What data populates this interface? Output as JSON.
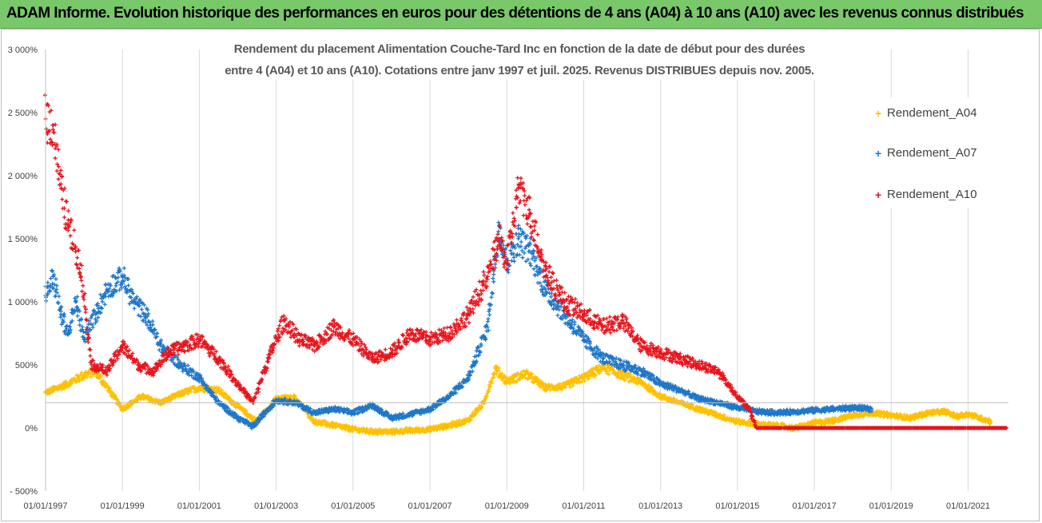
{
  "banner": {
    "title": "ADAM Informe. Evolution historique des performances en euros pour des détentions de 4 ans (A04) à 10 ans (A10) avec les revenus connus distribués"
  },
  "colors": {
    "banner_bg": "#79c96b",
    "A04": "#ffc000",
    "A07": "#1f77c8",
    "A10": "#e8141c",
    "grid": "#d9d9d9"
  },
  "chart_data": {
    "type": "scatter",
    "title_lines": [
      "Rendement du placement Alimentation Couche-Tard Inc en fonction de la date de début pour des durées",
      "entre 4 (A04) et 10 ans (A10). Cotations entre janv 1997 et juil. 2025. Revenus DISTRIBUES depuis nov. 2005."
    ],
    "x_tick_labels": [
      "01/01/1997",
      "01/01/1999",
      "01/01/2001",
      "01/01/2003",
      "01/01/2005",
      "01/01/2007",
      "01/01/2009",
      "01/01/2011",
      "01/01/2013",
      "01/01/2015",
      "01/01/2017",
      "01/01/2019",
      "01/01/2021"
    ],
    "xlim": [
      1997.0,
      2022.05
    ],
    "y_tick_labels": [
      "3 000%",
      "2 500%",
      "2 000%",
      "1 500%",
      "1 000%",
      "500%",
      "0%",
      "- 500%"
    ],
    "y_ticks": [
      3000,
      2500,
      2000,
      1500,
      1000,
      500,
      0,
      -500
    ],
    "ylim": [
      -500,
      3000
    ],
    "reference_line": 200,
    "grid": "vertical",
    "legend_position": "right",
    "marker": "+",
    "series": [
      {
        "name": "Rendement_A04",
        "color": "#ffc000",
        "x": [
          1997.0,
          1997.5,
          1998.0,
          1998.3,
          1998.7,
          1999.0,
          1999.5,
          2000.0,
          2000.5,
          2001.0,
          2001.5,
          2002.0,
          2002.5,
          2003.0,
          2003.5,
          2004.0,
          2004.5,
          2005.0,
          2005.5,
          2006.0,
          2006.5,
          2007.0,
          2007.5,
          2008.0,
          2008.4,
          2008.7,
          2009.0,
          2009.5,
          2010.0,
          2010.5,
          2011.0,
          2011.5,
          2012.0,
          2012.5,
          2013.0,
          2013.5,
          2014.0,
          2014.5,
          2015.0,
          2015.5,
          2016.0,
          2016.5,
          2017.0,
          2017.5,
          2018.0,
          2018.5,
          2019.0,
          2019.5,
          2020.0,
          2020.4,
          2020.7,
          2021.0,
          2021.4,
          2021.6
        ],
        "y": [
          280,
          340,
          420,
          450,
          280,
          150,
          250,
          200,
          270,
          320,
          300,
          170,
          50,
          230,
          240,
          50,
          20,
          -10,
          -30,
          -30,
          -20,
          -10,
          20,
          60,
          200,
          470,
          370,
          430,
          320,
          330,
          400,
          480,
          420,
          360,
          250,
          200,
          150,
          100,
          50,
          30,
          20,
          0,
          40,
          60,
          100,
          120,
          100,
          80,
          120,
          130,
          90,
          110,
          70,
          50
        ]
      },
      {
        "name": "Rendement_A07",
        "color": "#1f77c8",
        "x": [
          1997.0,
          1997.2,
          1997.4,
          1997.6,
          1997.8,
          1998.0,
          1998.3,
          1998.6,
          1999.0,
          1999.3,
          1999.6,
          2000.0,
          2000.5,
          2001.0,
          2001.5,
          2002.0,
          2002.4,
          2002.7,
          2003.0,
          2003.5,
          2004.0,
          2004.5,
          2005.0,
          2005.5,
          2006.0,
          2006.5,
          2007.0,
          2007.5,
          2008.0,
          2008.5,
          2008.8,
          2009.0,
          2009.3,
          2009.6,
          2010.0,
          2010.5,
          2011.0,
          2011.5,
          2012.0,
          2012.5,
          2013.0,
          2013.5,
          2014.0,
          2014.5,
          2015.0,
          2015.5,
          2016.0,
          2016.5,
          2017.0,
          2017.5,
          2018.0,
          2018.5
        ],
        "y": [
          1050,
          1200,
          900,
          750,
          1000,
          700,
          900,
          1100,
          1200,
          1000,
          900,
          650,
          500,
          400,
          200,
          80,
          10,
          120,
          220,
          200,
          120,
          150,
          120,
          180,
          80,
          110,
          150,
          250,
          400,
          800,
          1600,
          1300,
          1500,
          1400,
          1100,
          900,
          700,
          550,
          500,
          450,
          350,
          300,
          230,
          200,
          160,
          130,
          120,
          130,
          140,
          150,
          160,
          150
        ]
      },
      {
        "name": "Rendement_A10",
        "color": "#e8141c",
        "x": [
          1997.0,
          1997.2,
          1997.4,
          1997.6,
          1997.9,
          1998.2,
          1998.6,
          1999.0,
          1999.4,
          1999.8,
          2000.2,
          2000.6,
          2001.0,
          2001.5,
          2002.0,
          2002.4,
          2002.8,
          2003.2,
          2003.6,
          2004.0,
          2004.5,
          2005.0,
          2005.5,
          2006.0,
          2006.5,
          2007.0,
          2007.5,
          2008.0,
          2008.5,
          2008.8,
          2009.0,
          2009.3,
          2009.6,
          2010.0,
          2010.5,
          2011.0,
          2011.5,
          2012.0,
          2012.5,
          2013.0,
          2013.5,
          2014.0,
          2014.5,
          2015.0,
          2015.3,
          2015.5,
          2016.0,
          2017.0,
          2018.0,
          2019.0,
          2020.0,
          2021.0,
          2022.0
        ],
        "y": [
          2450,
          2400,
          1900,
          1600,
          1300,
          500,
          450,
          650,
          500,
          450,
          600,
          650,
          700,
          550,
          350,
          200,
          550,
          850,
          700,
          650,
          800,
          700,
          550,
          600,
          750,
          700,
          750,
          900,
          1200,
          1500,
          1300,
          1900,
          1700,
          1250,
          1000,
          900,
          800,
          850,
          650,
          600,
          550,
          500,
          450,
          250,
          150,
          0,
          0,
          0,
          0,
          0,
          0,
          0,
          0
        ]
      }
    ]
  }
}
